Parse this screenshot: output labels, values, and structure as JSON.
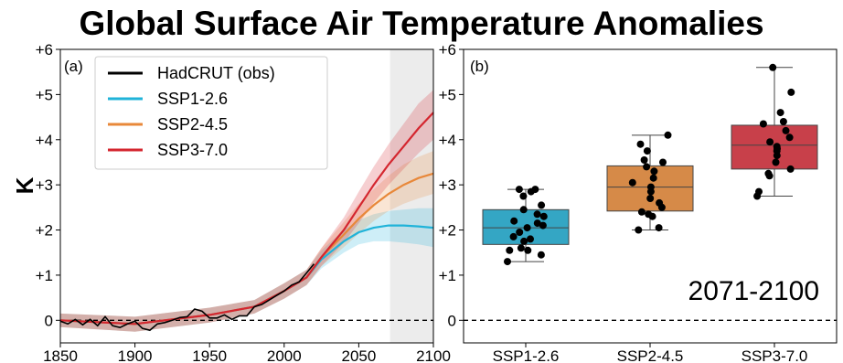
{
  "title": "Global Surface Air Temperature Anomalies",
  "colors": {
    "obs": "#000000",
    "ssp126": "#1fb3d9",
    "ssp245": "#e8883a",
    "ssp370": "#d4262f",
    "box126": "#34a6c4",
    "box245": "#d68a48",
    "box370": "#c8404a",
    "shade": "#ececec"
  },
  "chart_data": [
    {
      "type": "line",
      "panel_label": "(a)",
      "ylabel": "K",
      "xlim": [
        1850,
        2100
      ],
      "ylim": [
        -0.5,
        6
      ],
      "xticks": [
        "1850",
        "1900",
        "1950",
        "2000",
        "2050",
        "2100"
      ],
      "yticks": [
        "0",
        "+1",
        "+2",
        "+3",
        "+4",
        "+5",
        "+6"
      ],
      "shaded_period": [
        2071,
        2100
      ],
      "zero_line": true,
      "series": [
        {
          "name": "HadCRUT (obs)",
          "key": "obs",
          "x": [
            1850,
            1855,
            1860,
            1865,
            1870,
            1875,
            1880,
            1885,
            1890,
            1895,
            1900,
            1905,
            1910,
            1915,
            1920,
            1925,
            1930,
            1935,
            1940,
            1945,
            1950,
            1955,
            1960,
            1965,
            1970,
            1975,
            1980,
            1985,
            1990,
            1995,
            2000,
            2005,
            2010,
            2015,
            2020
          ],
          "y": [
            -0.02,
            -0.08,
            0.02,
            -0.1,
            0.02,
            -0.12,
            0.08,
            -0.12,
            -0.16,
            -0.08,
            -0.02,
            -0.18,
            -0.22,
            -0.08,
            -0.05,
            0.0,
            0.06,
            0.08,
            0.25,
            0.2,
            0.05,
            0.05,
            0.12,
            0.02,
            0.1,
            0.1,
            0.3,
            0.35,
            0.45,
            0.55,
            0.65,
            0.78,
            0.85,
            1.05,
            1.25
          ]
        },
        {
          "name": "SSP1-2.6",
          "key": "ssp126",
          "x": [
            1850,
            1900,
            1950,
            1980,
            2000,
            2015,
            2025,
            2040,
            2050,
            2060,
            2070,
            2080,
            2090,
            2100
          ],
          "y": [
            0.0,
            -0.08,
            0.12,
            0.3,
            0.65,
            0.95,
            1.35,
            1.75,
            1.95,
            2.05,
            2.1,
            2.1,
            2.08,
            2.05
          ],
          "lo": [
            -0.15,
            -0.25,
            -0.05,
            0.15,
            0.48,
            0.78,
            1.15,
            1.5,
            1.68,
            1.75,
            1.75,
            1.72,
            1.68,
            1.62
          ],
          "hi": [
            0.15,
            0.08,
            0.28,
            0.45,
            0.82,
            1.12,
            1.55,
            2.0,
            2.22,
            2.35,
            2.42,
            2.45,
            2.48,
            2.48
          ]
        },
        {
          "name": "SSP2-4.5",
          "key": "ssp245",
          "x": [
            1850,
            1900,
            1950,
            1980,
            2000,
            2015,
            2025,
            2040,
            2050,
            2060,
            2070,
            2080,
            2090,
            2100
          ],
          "y": [
            0.0,
            -0.08,
            0.12,
            0.3,
            0.65,
            0.95,
            1.4,
            1.9,
            2.25,
            2.55,
            2.8,
            3.0,
            3.15,
            3.25
          ],
          "lo": [
            -0.15,
            -0.25,
            -0.05,
            0.15,
            0.48,
            0.78,
            1.2,
            1.62,
            1.92,
            2.2,
            2.42,
            2.58,
            2.7,
            2.8
          ],
          "hi": [
            0.15,
            0.08,
            0.28,
            0.45,
            0.82,
            1.12,
            1.6,
            2.18,
            2.58,
            2.9,
            3.2,
            3.45,
            3.62,
            3.75
          ]
        },
        {
          "name": "SSP3-7.0",
          "key": "ssp370",
          "x": [
            1850,
            1900,
            1950,
            1980,
            2000,
            2015,
            2025,
            2040,
            2050,
            2060,
            2070,
            2080,
            2090,
            2100
          ],
          "y": [
            0.0,
            -0.08,
            0.12,
            0.3,
            0.65,
            0.95,
            1.4,
            2.0,
            2.5,
            3.0,
            3.45,
            3.85,
            4.25,
            4.6
          ],
          "lo": [
            -0.15,
            -0.25,
            -0.05,
            0.15,
            0.48,
            0.78,
            1.2,
            1.72,
            2.15,
            2.6,
            3.0,
            3.35,
            3.7,
            4.0
          ],
          "hi": [
            0.15,
            0.08,
            0.28,
            0.45,
            0.82,
            1.12,
            1.6,
            2.28,
            2.85,
            3.4,
            3.9,
            4.35,
            4.8,
            5.1
          ]
        }
      ],
      "legend": {
        "placement": "top-left"
      }
    },
    {
      "type": "box",
      "panel_label": "(b)",
      "annotation": "2071-2100",
      "categories": [
        "SSP1-2.6",
        "SSP2-4.5",
        "SSP3-7.0"
      ],
      "ylim": [
        -0.5,
        6
      ],
      "yticks": [
        "0",
        "+1",
        "+2",
        "+3",
        "+4",
        "+5",
        "+6"
      ],
      "zero_line": true,
      "boxes": [
        {
          "category": "SSP1-2.6",
          "key": "box126",
          "whisker_low": 1.3,
          "q1": 1.68,
          "median": 2.05,
          "q3": 2.45,
          "whisker_high": 2.9,
          "points": [
            1.3,
            1.45,
            1.55,
            1.55,
            1.6,
            1.75,
            1.8,
            1.85,
            1.95,
            2.05,
            2.1,
            2.15,
            2.2,
            2.3,
            2.35,
            2.45,
            2.55,
            2.75,
            2.85,
            2.9,
            2.9
          ]
        },
        {
          "category": "SSP2-4.5",
          "key": "box245",
          "whisker_low": 2.0,
          "q1": 2.42,
          "median": 2.95,
          "q3": 3.42,
          "whisker_high": 4.1,
          "points": [
            2.0,
            2.05,
            2.3,
            2.35,
            2.4,
            2.5,
            2.6,
            2.7,
            2.85,
            2.95,
            3.05,
            3.15,
            3.3,
            3.4,
            3.5,
            3.55,
            3.75,
            3.9,
            4.1
          ]
        },
        {
          "category": "SSP3-7.0",
          "key": "box370",
          "whisker_low": 2.75,
          "q1": 3.35,
          "median": 3.88,
          "q3": 4.32,
          "whisker_high": 5.6,
          "points": [
            2.75,
            2.85,
            3.2,
            3.25,
            3.35,
            3.5,
            3.65,
            3.75,
            3.8,
            3.85,
            3.95,
            4.05,
            4.2,
            4.35,
            4.4,
            4.6,
            5.05,
            5.6
          ]
        }
      ]
    }
  ]
}
